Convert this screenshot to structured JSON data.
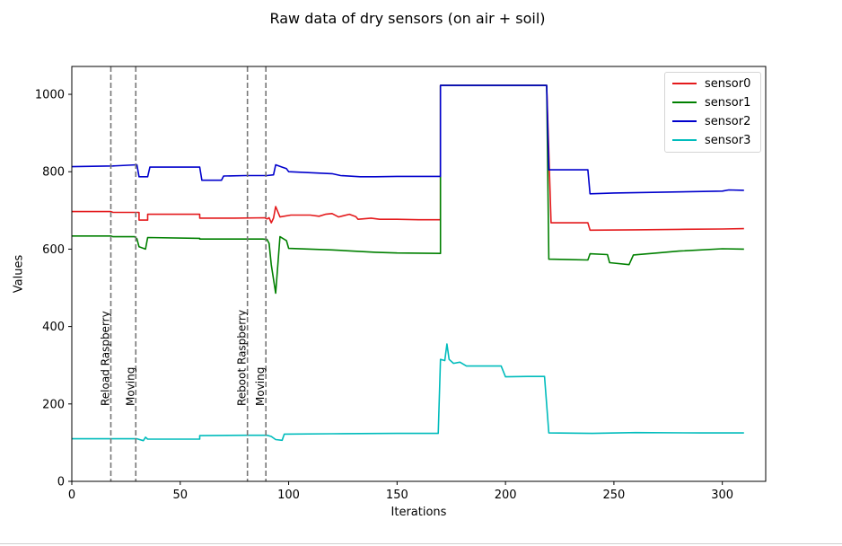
{
  "chart_data": {
    "type": "line",
    "title": "Raw data of dry sensors (on air + soil)",
    "xlabel": "Iterations",
    "ylabel": "Values",
    "xlim": [
      0,
      320
    ],
    "ylim": [
      0,
      1072
    ],
    "xticks": [
      0,
      50,
      100,
      150,
      200,
      250,
      300
    ],
    "yticks": [
      0,
      200,
      400,
      600,
      800,
      1000
    ],
    "grid": false,
    "legend_placement": "top-right",
    "series": [
      {
        "name": "sensor0",
        "color": "#e41a1c",
        "points": [
          [
            0,
            697
          ],
          [
            18,
            697
          ],
          [
            19,
            695
          ],
          [
            31,
            695
          ],
          [
            31,
            675
          ],
          [
            35,
            675
          ],
          [
            35,
            690
          ],
          [
            59,
            690
          ],
          [
            59,
            680
          ],
          [
            75,
            680
          ],
          [
            89,
            681
          ],
          [
            90,
            678
          ],
          [
            91,
            681
          ],
          [
            92,
            668
          ],
          [
            93,
            680
          ],
          [
            94,
            710
          ],
          [
            96,
            683
          ],
          [
            101,
            688
          ],
          [
            110,
            688
          ],
          [
            114,
            685
          ],
          [
            117,
            690
          ],
          [
            120,
            692
          ],
          [
            123,
            683
          ],
          [
            128,
            690
          ],
          [
            131,
            684
          ],
          [
            132,
            677
          ],
          [
            138,
            680
          ],
          [
            142,
            677
          ],
          [
            150,
            677
          ],
          [
            160,
            676
          ],
          [
            170,
            676
          ],
          [
            170,
            1023
          ],
          [
            219,
            1023
          ],
          [
            221,
            668
          ],
          [
            238,
            668
          ],
          [
            239,
            649
          ],
          [
            260,
            650
          ],
          [
            280,
            651
          ],
          [
            300,
            652
          ],
          [
            310,
            653
          ]
        ]
      },
      {
        "name": "sensor1",
        "color": "#008000",
        "points": [
          [
            0,
            634
          ],
          [
            18,
            634
          ],
          [
            19,
            632
          ],
          [
            29,
            632
          ],
          [
            30,
            627
          ],
          [
            31,
            606
          ],
          [
            34,
            600
          ],
          [
            35,
            630
          ],
          [
            59,
            628
          ],
          [
            59,
            626
          ],
          [
            75,
            626
          ],
          [
            88,
            626
          ],
          [
            90,
            625
          ],
          [
            91,
            615
          ],
          [
            92,
            560
          ],
          [
            94,
            486
          ],
          [
            96,
            632
          ],
          [
            99,
            622
          ],
          [
            100,
            602
          ],
          [
            120,
            598
          ],
          [
            140,
            592
          ],
          [
            150,
            590
          ],
          [
            170,
            589
          ],
          [
            170,
            1023
          ],
          [
            219,
            1023
          ],
          [
            220,
            574
          ],
          [
            238,
            572
          ],
          [
            239,
            588
          ],
          [
            247,
            586
          ],
          [
            248,
            565
          ],
          [
            257,
            560
          ],
          [
            259,
            585
          ],
          [
            270,
            590
          ],
          [
            280,
            595
          ],
          [
            300,
            601
          ],
          [
            310,
            600
          ]
        ]
      },
      {
        "name": "sensor2",
        "color": "#0000cc",
        "points": [
          [
            0,
            813
          ],
          [
            19,
            815
          ],
          [
            30,
            818
          ],
          [
            31,
            787
          ],
          [
            35,
            787
          ],
          [
            36,
            812
          ],
          [
            59,
            812
          ],
          [
            60,
            778
          ],
          [
            69,
            778
          ],
          [
            70,
            789
          ],
          [
            80,
            790
          ],
          [
            90,
            790
          ],
          [
            93,
            792
          ],
          [
            94,
            818
          ],
          [
            97,
            812
          ],
          [
            99,
            808
          ],
          [
            100,
            800
          ],
          [
            120,
            795
          ],
          [
            124,
            790
          ],
          [
            133,
            787
          ],
          [
            140,
            787
          ],
          [
            150,
            788
          ],
          [
            168,
            788
          ],
          [
            170,
            788
          ],
          [
            170,
            1023
          ],
          [
            219,
            1023
          ],
          [
            220,
            805
          ],
          [
            238,
            805
          ],
          [
            239,
            743
          ],
          [
            250,
            745
          ],
          [
            300,
            750
          ],
          [
            303,
            753
          ],
          [
            310,
            752
          ]
        ]
      },
      {
        "name": "sensor3",
        "color": "#00bcbc",
        "points": [
          [
            0,
            110
          ],
          [
            30,
            110
          ],
          [
            33,
            105
          ],
          [
            34,
            114
          ],
          [
            35,
            109
          ],
          [
            59,
            109
          ],
          [
            59,
            118
          ],
          [
            80,
            119
          ],
          [
            90,
            119
          ],
          [
            92,
            116
          ],
          [
            94,
            108
          ],
          [
            97,
            106
          ],
          [
            98,
            122
          ],
          [
            120,
            123
          ],
          [
            150,
            124
          ],
          [
            169,
            124
          ],
          [
            170,
            315
          ],
          [
            172,
            312
          ],
          [
            173,
            355
          ],
          [
            174,
            315
          ],
          [
            176,
            305
          ],
          [
            179,
            308
          ],
          [
            182,
            298
          ],
          [
            190,
            298
          ],
          [
            198,
            298
          ],
          [
            200,
            270
          ],
          [
            210,
            271
          ],
          [
            218,
            271
          ],
          [
            220,
            125
          ],
          [
            240,
            124
          ],
          [
            260,
            126
          ],
          [
            290,
            125
          ],
          [
            310,
            125
          ]
        ]
      }
    ],
    "annotations": [
      {
        "x": 18,
        "text": "Reload Raspberry"
      },
      {
        "x": 29.5,
        "text": "Moving"
      },
      {
        "x": 81,
        "text": "Reboot Raspberry"
      },
      {
        "x": 89.5,
        "text": "Moving"
      }
    ]
  }
}
